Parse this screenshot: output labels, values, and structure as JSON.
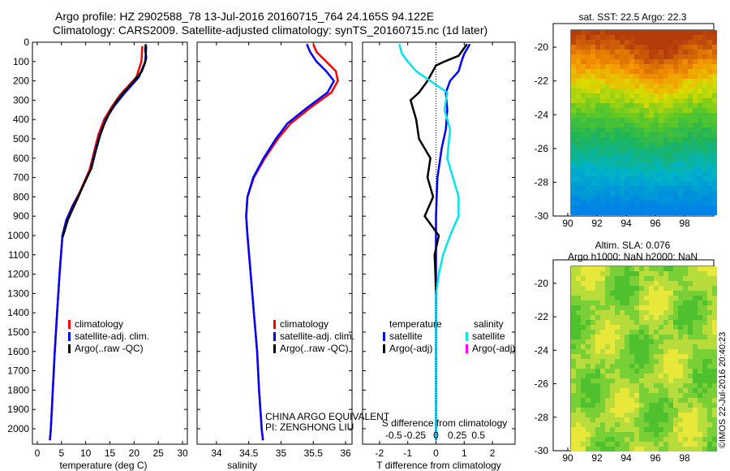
{
  "header": {
    "line1": "Argo profile: HZ 2902588_78 13-Jul-2016 20160715_764 24.165S 94.122E",
    "line2": "Climatology: CARS2009. Satellite-adjusted climatology: synTS_20160715.nc (1d later)"
  },
  "colors": {
    "climatology": "#ff0000",
    "satellite": "#0000ff",
    "argo": "#000000",
    "sat_s": "#00e5ee",
    "argo_s": "#ff00ff"
  },
  "chart_data": [
    {
      "type": "line",
      "xlabel": "temperature (deg C)",
      "xlim": [
        -1,
        31
      ],
      "ylim": [
        2080,
        0
      ],
      "xticks": [
        "0",
        "5",
        "10",
        "15",
        "20",
        "25",
        "30"
      ],
      "yticks": [
        "0",
        "100",
        "200",
        "300",
        "400",
        "500",
        "600",
        "700",
        "800",
        "900",
        "1000",
        "1100",
        "1200",
        "1300",
        "1400",
        "1500",
        "1600",
        "1700",
        "1800",
        "1900",
        "2000"
      ],
      "legend": [
        "climatology",
        "satellite-adj. clim.",
        "Argo(..raw -QC)"
      ],
      "series": [
        {
          "name": "climatology",
          "color": "#ff0000",
          "points": [
            [
              21.7,
              20
            ],
            [
              21.5,
              100
            ],
            [
              20.5,
              180
            ],
            [
              17.2,
              270
            ],
            [
              15.5,
              330
            ],
            [
              13.8,
              400
            ],
            [
              12.6,
              480
            ],
            [
              11.8,
              560
            ],
            [
              10.8,
              660
            ],
            [
              8.7,
              780
            ],
            [
              7.2,
              850
            ],
            [
              6.0,
              920
            ],
            [
              5.2,
              1000
            ],
            [
              4.6,
              1200
            ],
            [
              4.1,
              1400
            ],
            [
              3.6,
              1600
            ],
            [
              3.2,
              1800
            ],
            [
              2.8,
              2000
            ],
            [
              2.6,
              2060
            ]
          ]
        },
        {
          "name": "satellite-adj. clim.",
          "color": "#0000ff",
          "points": [
            [
              22.5,
              20
            ],
            [
              22.3,
              100
            ],
            [
              21.0,
              180
            ],
            [
              17.8,
              270
            ],
            [
              15.9,
              330
            ],
            [
              14.1,
              400
            ],
            [
              12.9,
              480
            ],
            [
              12.0,
              560
            ],
            [
              11.0,
              660
            ],
            [
              8.8,
              780
            ],
            [
              7.3,
              850
            ],
            [
              6.0,
              920
            ],
            [
              5.2,
              1000
            ],
            [
              4.6,
              1200
            ],
            [
              4.1,
              1400
            ],
            [
              3.6,
              1600
            ],
            [
              3.2,
              1800
            ],
            [
              2.8,
              2000
            ],
            [
              2.6,
              2060
            ]
          ]
        },
        {
          "name": "Argo(..raw -QC)",
          "color": "#000000",
          "points": [
            [
              22.4,
              10
            ],
            [
              22.3,
              40
            ],
            [
              22.5,
              80
            ],
            [
              22.2,
              110
            ],
            [
              21.6,
              150
            ],
            [
              20.0,
              200
            ],
            [
              17.8,
              260
            ],
            [
              16.5,
              300
            ],
            [
              15.2,
              350
            ],
            [
              13.9,
              420
            ],
            [
              13.0,
              480
            ],
            [
              12.1,
              560
            ],
            [
              11.2,
              650
            ],
            [
              9.5,
              740
            ],
            [
              8.3,
              810
            ],
            [
              7.2,
              870
            ],
            [
              6.3,
              920
            ],
            [
              5.6,
              980
            ],
            [
              5.2,
              1010
            ]
          ]
        }
      ]
    },
    {
      "type": "line",
      "xlabel": "salinity",
      "xlim": [
        33.7,
        36.1
      ],
      "ylim": [
        2080,
        0
      ],
      "xticks": [
        "34",
        "34.5",
        "35",
        "35.5",
        "36"
      ],
      "legend": [
        "climatology",
        "satellite-adj. clim.",
        "Argo(..raw -QC)"
      ],
      "series": [
        {
          "name": "climatology",
          "color": "#ff0000",
          "points": [
            [
              35.5,
              10
            ],
            [
              35.55,
              50
            ],
            [
              35.7,
              100
            ],
            [
              35.85,
              150
            ],
            [
              35.88,
              200
            ],
            [
              35.78,
              260
            ],
            [
              35.45,
              340
            ],
            [
              35.15,
              420
            ],
            [
              34.95,
              500
            ],
            [
              34.75,
              600
            ],
            [
              34.58,
              700
            ],
            [
              34.48,
              800
            ],
            [
              34.46,
              900
            ],
            [
              34.48,
              1000
            ],
            [
              34.53,
              1200
            ],
            [
              34.58,
              1400
            ],
            [
              34.63,
              1600
            ],
            [
              34.66,
              1800
            ],
            [
              34.7,
              2000
            ],
            [
              34.72,
              2060
            ]
          ]
        },
        {
          "name": "satellite-adj. clim.",
          "color": "#0000ff",
          "points": [
            [
              35.4,
              10
            ],
            [
              35.45,
              50
            ],
            [
              35.55,
              100
            ],
            [
              35.7,
              150
            ],
            [
              35.82,
              200
            ],
            [
              35.72,
              260
            ],
            [
              35.4,
              340
            ],
            [
              35.1,
              420
            ],
            [
              34.92,
              500
            ],
            [
              34.73,
              600
            ],
            [
              34.57,
              700
            ],
            [
              34.48,
              800
            ],
            [
              34.46,
              900
            ],
            [
              34.48,
              1000
            ],
            [
              34.53,
              1200
            ],
            [
              34.58,
              1400
            ],
            [
              34.63,
              1600
            ],
            [
              34.66,
              1800
            ],
            [
              34.7,
              2000
            ],
            [
              34.72,
              2060
            ]
          ]
        }
      ],
      "annotation": [
        "CHINA ARGO EQUIVALENT",
        "PI: ZENGHONG LIU"
      ]
    },
    {
      "type": "line",
      "xlabel": "T difference from climatology",
      "xlabel_top": "S difference from climatology",
      "xlim": [
        -2.6,
        2.8
      ],
      "ylim": [
        2080,
        0
      ],
      "xticks": [
        "-2",
        "-1",
        "0",
        "1",
        "2"
      ],
      "xticks_top": [
        "-0.5",
        "-0.25",
        "0",
        "0.25",
        "0.5"
      ],
      "legend_t_title": "temperature",
      "legend_s_title": "salinity",
      "legend": [
        "satellite",
        "Argo(-adj)",
        "satellite",
        "Argo(-adj)"
      ],
      "series": [
        {
          "name": "T satellite",
          "color": "#0000ff",
          "points": [
            [
              1.2,
              10
            ],
            [
              1.0,
              60
            ],
            [
              0.9,
              100
            ],
            [
              0.8,
              150
            ],
            [
              0.5,
              200
            ],
            [
              0.35,
              260
            ],
            [
              0.4,
              350
            ],
            [
              0.35,
              450
            ],
            [
              0.2,
              550
            ],
            [
              0.05,
              700
            ],
            [
              0,
              900
            ],
            [
              0,
              2060
            ]
          ]
        },
        {
          "name": "T Argo(-adj)",
          "color": "#000000",
          "points": [
            [
              1.1,
              10
            ],
            [
              0.9,
              50
            ],
            [
              0.8,
              70
            ],
            [
              0.3,
              100
            ],
            [
              0.0,
              120
            ],
            [
              -0.3,
              200
            ],
            [
              -0.6,
              260
            ],
            [
              -0.9,
              300
            ],
            [
              -0.7,
              400
            ],
            [
              -0.6,
              500
            ],
            [
              -0.2,
              600
            ],
            [
              -0.3,
              700
            ],
            [
              -0.1,
              800
            ],
            [
              -0.4,
              900
            ],
            [
              0.1,
              1000
            ],
            [
              -0.05,
              1100
            ],
            [
              -0.02,
              1200
            ],
            [
              0,
              1310
            ]
          ]
        },
        {
          "name": "S satellite",
          "color": "#00e5ee",
          "points": [
            [
              -1.3,
              10
            ],
            [
              -1.2,
              60
            ],
            [
              -1.0,
              100
            ],
            [
              -0.7,
              150
            ],
            [
              -0.2,
              200
            ],
            [
              0.4,
              260
            ],
            [
              0.3,
              350
            ],
            [
              0.5,
              450
            ],
            [
              0.4,
              600
            ],
            [
              0.6,
              700
            ],
            [
              0.8,
              800
            ],
            [
              0.8,
              900
            ],
            [
              0.5,
              1000
            ],
            [
              0.25,
              1100
            ],
            [
              0.1,
              1200
            ],
            [
              0,
              1300
            ],
            [
              0,
              2060
            ]
          ]
        }
      ]
    },
    {
      "type": "heatmap",
      "title": "sat. SST: 22.5  Argo: 22.3",
      "xticks": [
        "90",
        "92",
        "94",
        "96",
        "98"
      ],
      "yticks": [
        "-20",
        "-22",
        "-24",
        "-26",
        "-28",
        "-30"
      ],
      "xlim": [
        89,
        100
      ],
      "ylim": [
        -30,
        -18.6
      ]
    },
    {
      "type": "heatmap",
      "title": "Altim. SLA: 0.076",
      "subtitle": "Argo h1000: NaN h2000: NaN",
      "xticks": [
        "90",
        "92",
        "94",
        "96",
        "98"
      ],
      "yticks": [
        "-20",
        "-22",
        "-24",
        "-26",
        "-28",
        "-30"
      ],
      "xlim": [
        89,
        100
      ],
      "ylim": [
        -30,
        -18.6
      ]
    }
  ],
  "credit": "©IMOS 22-Jul-2016 20:40:23"
}
